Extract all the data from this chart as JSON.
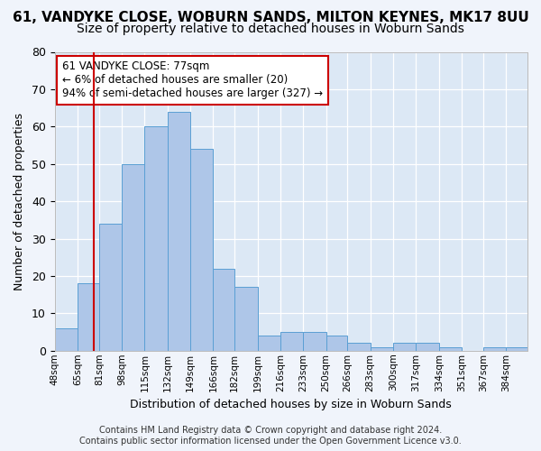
{
  "title": "61, VANDYKE CLOSE, WOBURN SANDS, MILTON KEYNES, MK17 8UU",
  "subtitle": "Size of property relative to detached houses in Woburn Sands",
  "xlabel": "Distribution of detached houses by size in Woburn Sands",
  "ylabel": "Number of detached properties",
  "bin_labels": [
    "48sqm",
    "65sqm",
    "81sqm",
    "98sqm",
    "115sqm",
    "132sqm",
    "149sqm",
    "166sqm",
    "182sqm",
    "199sqm",
    "216sqm",
    "233sqm",
    "250sqm",
    "266sqm",
    "283sqm",
    "300sqm",
    "317sqm",
    "334sqm",
    "351sqm",
    "367sqm",
    "384sqm"
  ],
  "bar_heights": [
    6,
    18,
    34,
    50,
    60,
    64,
    54,
    22,
    17,
    4,
    5,
    5,
    4,
    2,
    1,
    2,
    2,
    1,
    0,
    1,
    1
  ],
  "bar_color": "#aec6e8",
  "bar_edge_color": "#5a9fd4",
  "redline_x": 77,
  "redline_label": "61 VANDYKE CLOSE: 77sqm",
  "annotation_line1": "← 6% of detached houses are smaller (20)",
  "annotation_line2": "94% of semi-detached houses are larger (327) →",
  "annotation_box_color": "#ffffff",
  "annotation_box_edge": "#cc0000",
  "footer_line1": "Contains HM Land Registry data © Crown copyright and database right 2024.",
  "footer_line2": "Contains public sector information licensed under the Open Government Licence v3.0.",
  "bin_edges": [
    48,
    65,
    81,
    98,
    115,
    132,
    149,
    166,
    182,
    199,
    216,
    233,
    250,
    266,
    283,
    300,
    317,
    334,
    351,
    367,
    384,
    400
  ],
  "ylim": [
    0,
    80
  ],
  "yticks": [
    0,
    10,
    20,
    30,
    40,
    50,
    60,
    70,
    80
  ],
  "background_color": "#dce8f5",
  "grid_color": "#ffffff",
  "fig_background": "#f0f4fb",
  "title_fontsize": 11,
  "subtitle_fontsize": 10
}
